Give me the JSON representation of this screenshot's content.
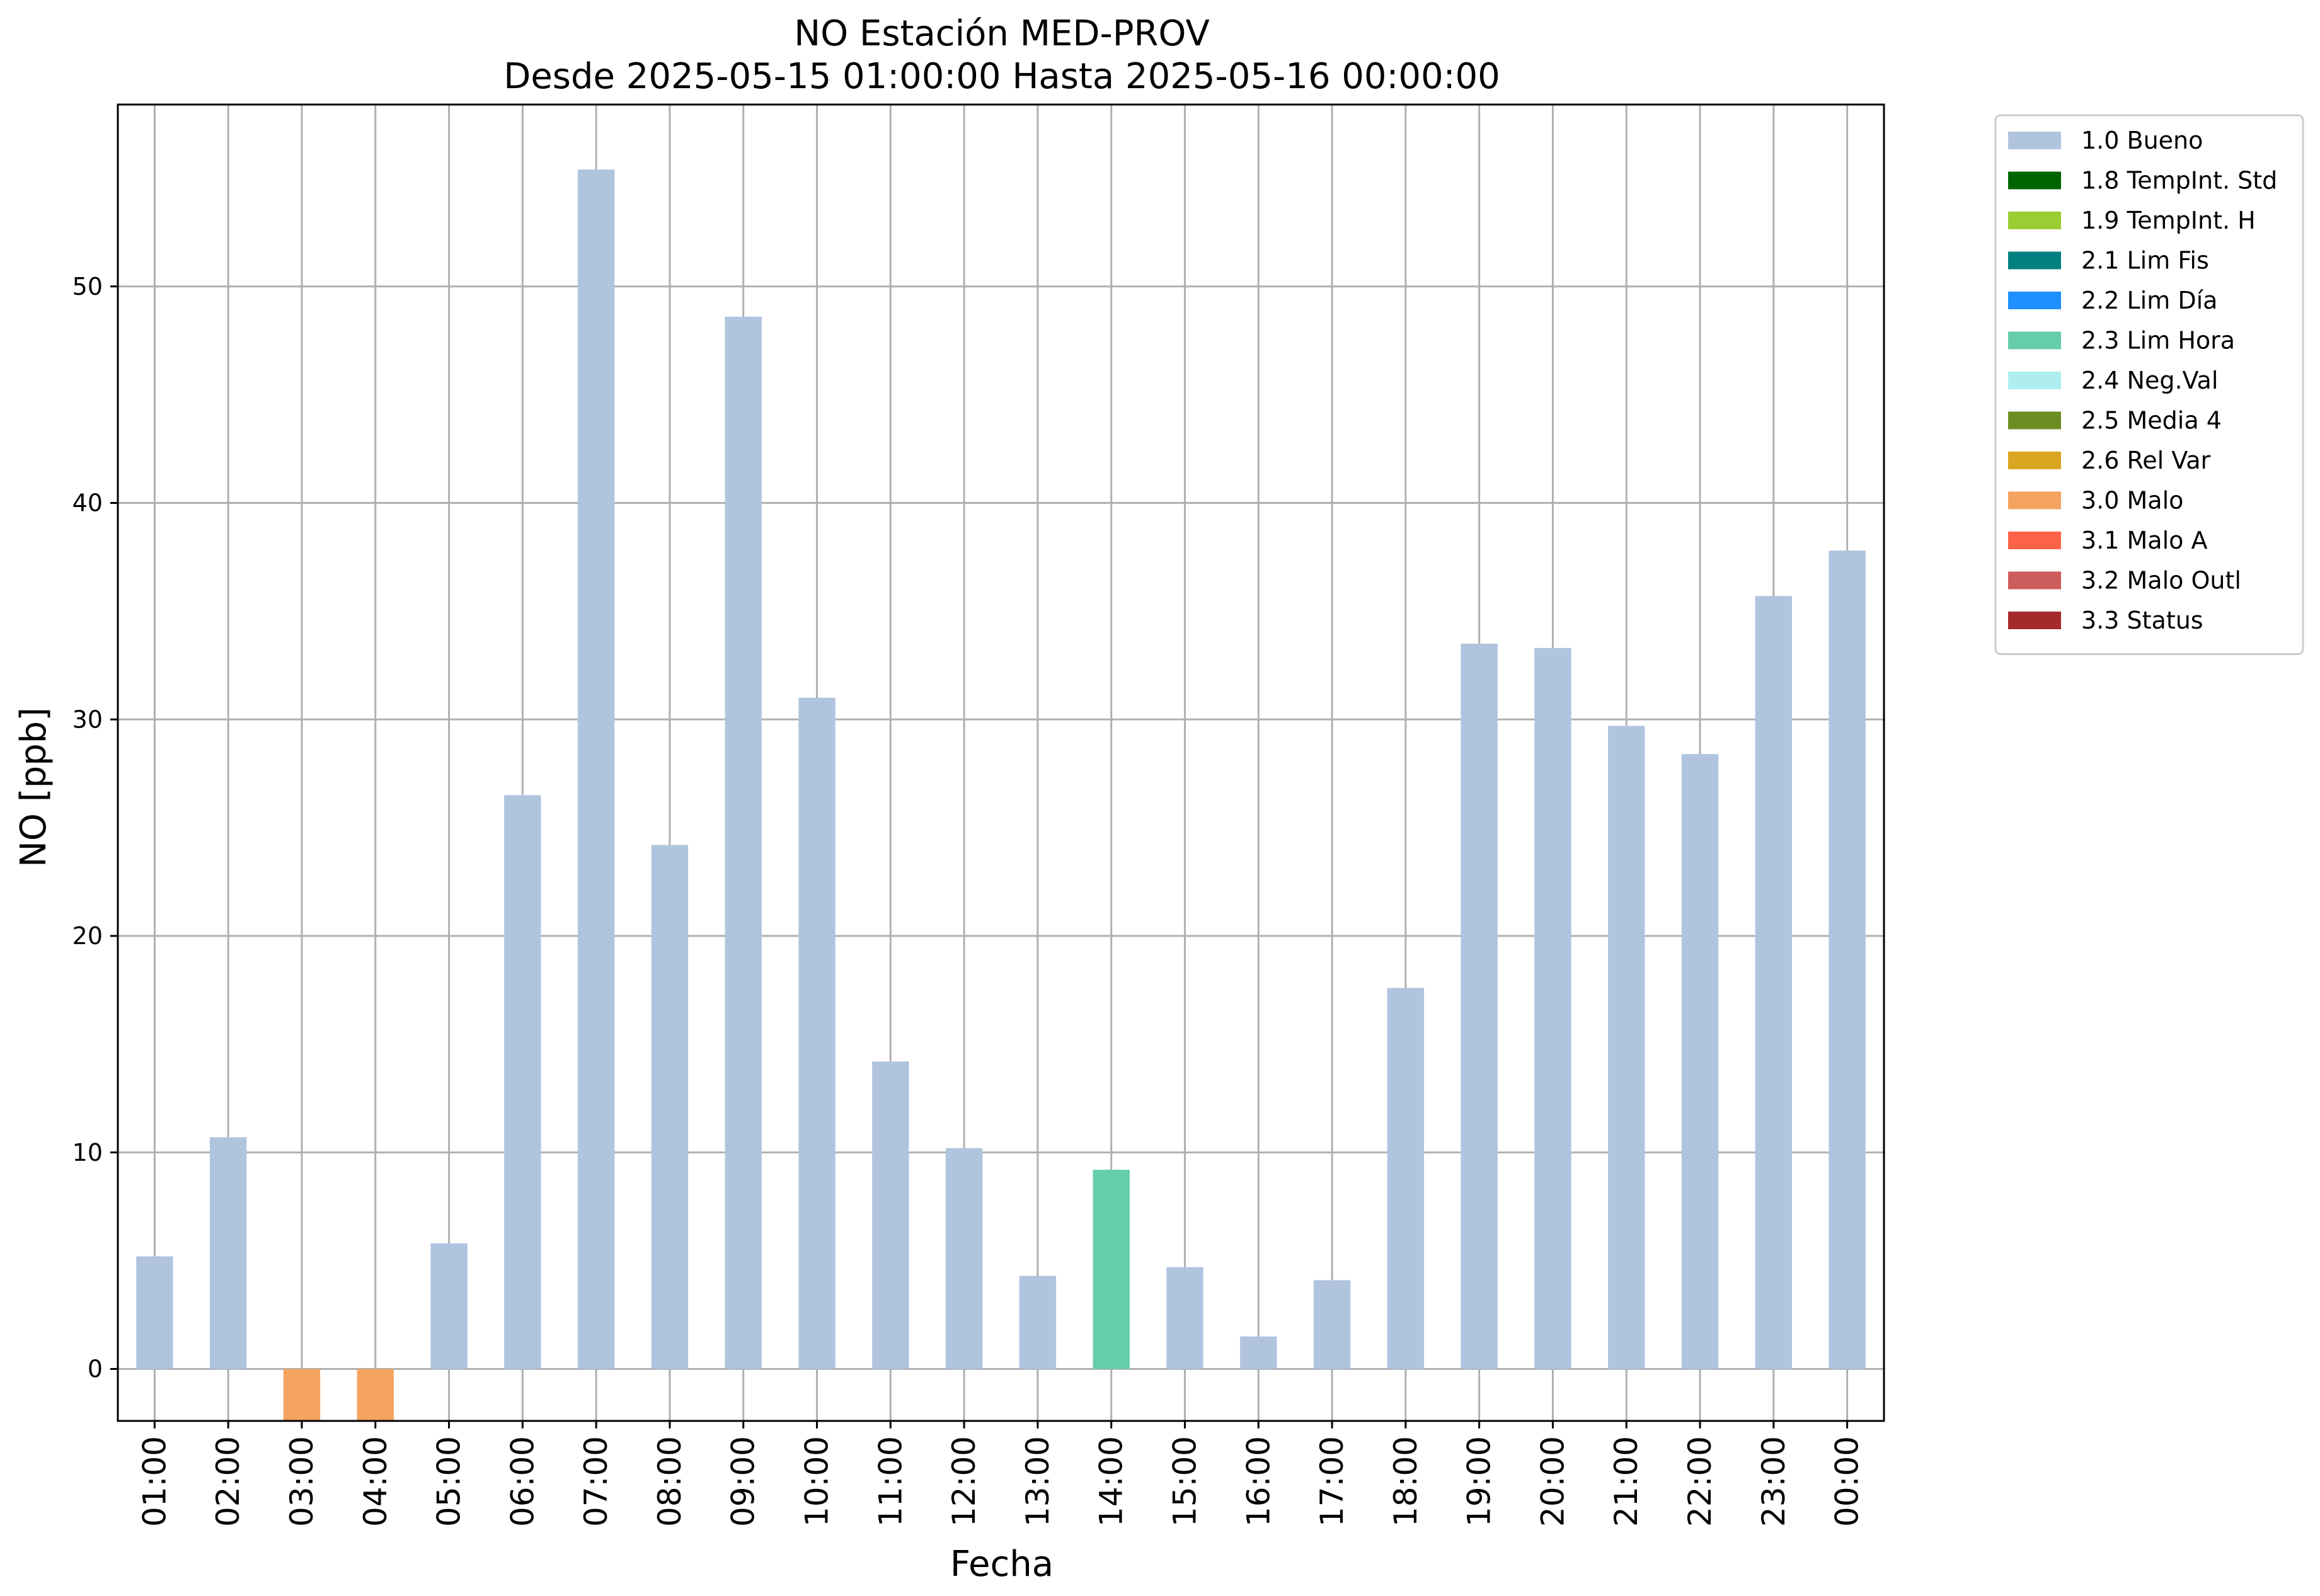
{
  "chart_data": {
    "type": "bar",
    "title": "NO Estación MED-PROV",
    "subtitle": "Desde 2025-05-15 01:00:00 Hasta 2025-05-16 00:00:00",
    "xlabel": "Fecha",
    "ylabel": "NO [ppb]",
    "ylim": [
      -2.4,
      58.4
    ],
    "yticks": [
      0,
      10,
      20,
      30,
      40,
      50
    ],
    "grid": true,
    "legend_position": "outside-top-right",
    "categories": [
      "01:00",
      "02:00",
      "03:00",
      "04:00",
      "05:00",
      "06:00",
      "07:00",
      "08:00",
      "09:00",
      "10:00",
      "11:00",
      "12:00",
      "13:00",
      "14:00",
      "15:00",
      "16:00",
      "17:00",
      "18:00",
      "19:00",
      "20:00",
      "21:00",
      "22:00",
      "23:00",
      "00:00"
    ],
    "values": [
      5.2,
      10.7,
      -2.4,
      -2.4,
      5.8,
      26.5,
      55.4,
      24.2,
      48.6,
      31.0,
      14.2,
      10.2,
      4.3,
      9.2,
      4.7,
      1.5,
      4.1,
      17.6,
      33.5,
      33.3,
      29.7,
      28.4,
      35.7,
      37.8
    ],
    "flags": [
      "1.0 Bueno",
      "1.0 Bueno",
      "3.0 Malo",
      "3.0 Malo",
      "1.0 Bueno",
      "1.0 Bueno",
      "1.0 Bueno",
      "1.0 Bueno",
      "1.0 Bueno",
      "1.0 Bueno",
      "1.0 Bueno",
      "1.0 Bueno",
      "1.0 Bueno",
      "2.3 Lim Hora",
      "1.0 Bueno",
      "1.0 Bueno",
      "1.0 Bueno",
      "1.0 Bueno",
      "1.0 Bueno",
      "1.0 Bueno",
      "1.0 Bueno",
      "1.0 Bueno",
      "1.0 Bueno",
      "1.0 Bueno"
    ],
    "legend": [
      {
        "label": "1.0 Bueno",
        "color": "#b0c4de"
      },
      {
        "label": "1.8 TempInt. Std",
        "color": "#006400"
      },
      {
        "label": "1.9 TempInt. H",
        "color": "#9acd32"
      },
      {
        "label": "2.1 Lim Fis",
        "color": "#008080"
      },
      {
        "label": "2.2 Lim Día",
        "color": "#1e90ff"
      },
      {
        "label": "2.3 Lim Hora",
        "color": "#66cdaa"
      },
      {
        "label": "2.4 Neg.Val",
        "color": "#afeeee"
      },
      {
        "label": "2.5 Media 4",
        "color": "#6b8e23"
      },
      {
        "label": "2.6 Rel Var",
        "color": "#daa520"
      },
      {
        "label": "3.0 Malo",
        "color": "#f4a460"
      },
      {
        "label": "3.1 Malo A",
        "color": "#ff6347"
      },
      {
        "label": "3.2 Malo Outl",
        "color": "#cd5c5c"
      },
      {
        "label": "3.3 Status",
        "color": "#a52a2a"
      }
    ]
  }
}
